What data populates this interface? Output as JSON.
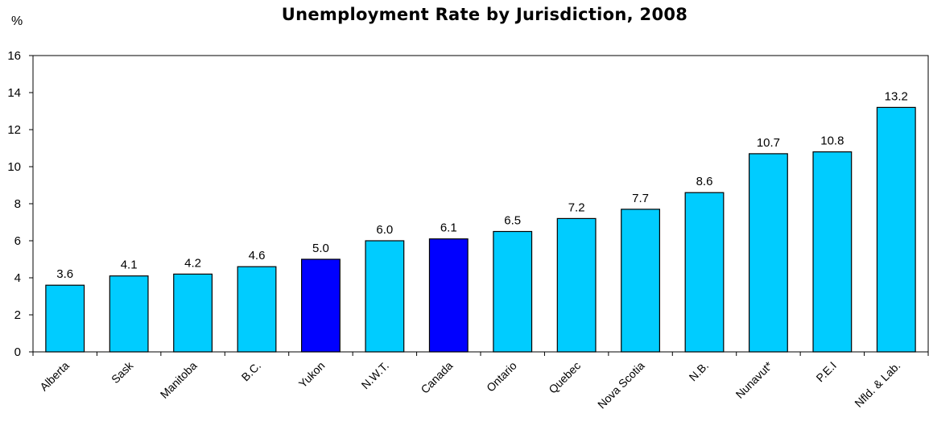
{
  "chart_data": {
    "type": "bar",
    "title": "Unemployment Rate by Jurisdiction, 2008",
    "ylabel": "%",
    "xlabel": "",
    "ylim": [
      0,
      16
    ],
    "yticks": [
      0,
      2,
      4,
      6,
      8,
      10,
      12,
      14,
      16
    ],
    "grid": false,
    "legend": "none",
    "categories": [
      "Alberta",
      "Sask",
      "Manitoba",
      "B.C.",
      "Yukon",
      "N.W.T.",
      "Canada",
      "Ontario",
      "Quebec",
      "Nova Scotia",
      "N.B.",
      "Nunavut*",
      "P.E.I",
      "Nfld. & Lab."
    ],
    "values": [
      3.6,
      4.1,
      4.2,
      4.6,
      5.0,
      6.0,
      6.1,
      6.5,
      7.2,
      7.7,
      8.6,
      10.7,
      10.8,
      13.2
    ],
    "value_labels": [
      "3.6",
      "4.1",
      "4.2",
      "4.6",
      "5.0",
      "6.0",
      "6.1",
      "6.5",
      "7.2",
      "7.7",
      "8.6",
      "10.7",
      "10.8",
      "13.2"
    ],
    "highlighted": [
      "Yukon",
      "Canada"
    ],
    "colors": {
      "bar": "#00ccff",
      "highlight": "#0000ff",
      "outline": "#000000"
    }
  }
}
